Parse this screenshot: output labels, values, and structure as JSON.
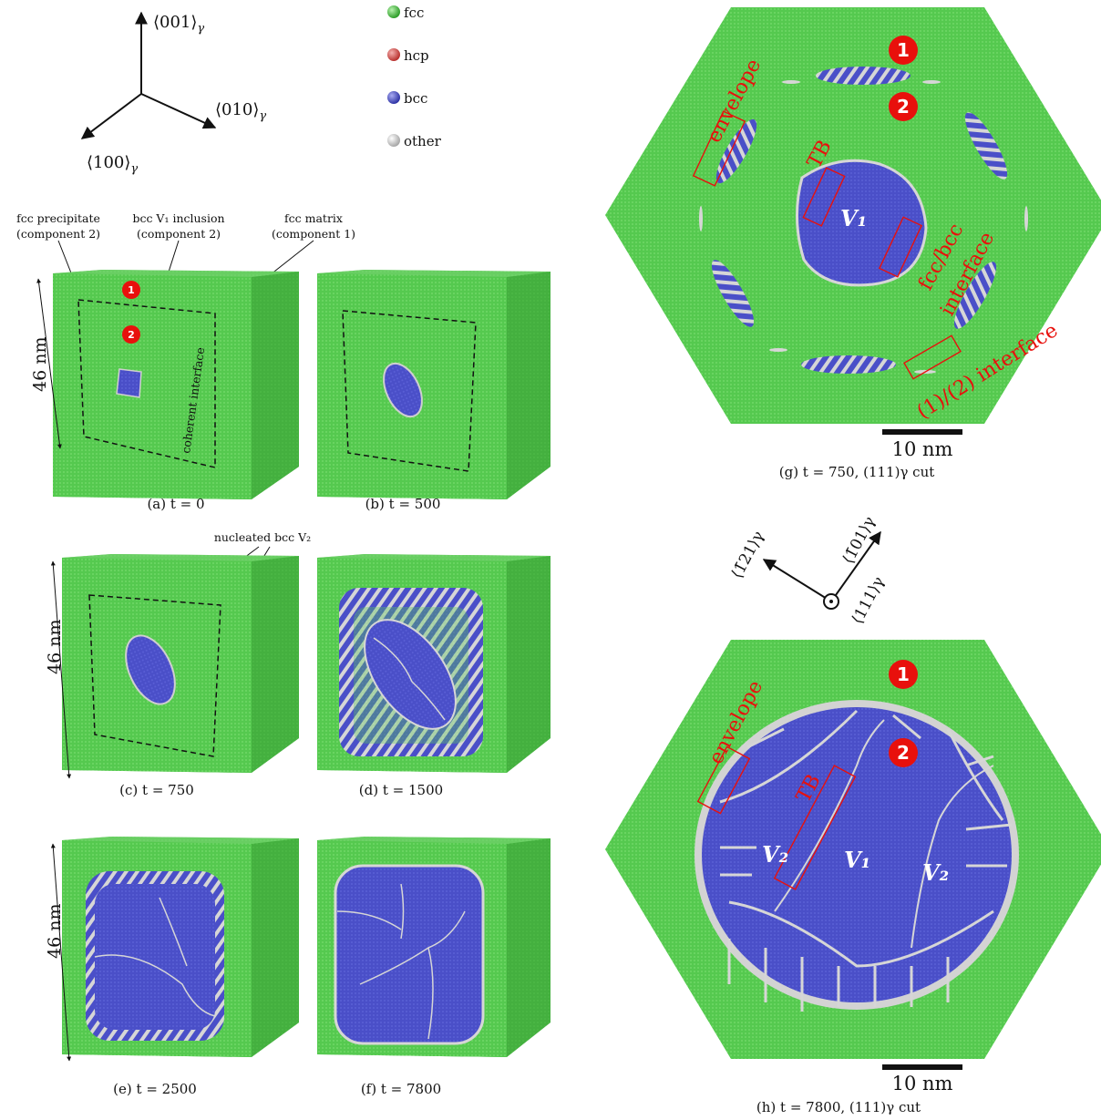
{
  "axes_3d": {
    "z_label": "⟨001⟩",
    "y_label": "⟨010⟩",
    "x_label": "⟨100⟩",
    "sub": "γ"
  },
  "legend": {
    "items": [
      {
        "label": "fcc",
        "color": "#4fc94a"
      },
      {
        "label": "hcp",
        "color": "#d9534f"
      },
      {
        "label": "bcc",
        "color": "#4a4fc8"
      },
      {
        "label": "other",
        "color": "#cfcfcf"
      }
    ]
  },
  "annotations_top": {
    "precipitate": [
      "fcc precipitate",
      "(component 2)"
    ],
    "inclusion": [
      "bcc V₁ inclusion",
      "(component 2)"
    ],
    "matrix": [
      "fcc matrix",
      "(component 1)"
    ],
    "coherent": "coherent interface",
    "nucleated": "nucleated bcc V₂",
    "size": "46 nm"
  },
  "markers": {
    "one": "1",
    "two": "2"
  },
  "panels": {
    "a": "(a)  t = 0",
    "b": "(b)  t = 500",
    "c": "(c)  t = 750",
    "d": "(d)  t = 1500",
    "e": "(e)  t = 2500",
    "f": "(f)  t = 7800",
    "g": "(g)  t = 750, (111)γ cut",
    "h": "(h)  t = 7800, (111)γ cut"
  },
  "hex_labels": {
    "envelope": "envelope",
    "tb": "TB",
    "fcc_bcc": "fcc/bcc",
    "interface": "interface",
    "comp_interface": "(1)/(2) interface",
    "v1": "V₁",
    "v2": "V₂",
    "scale": "10 nm"
  },
  "axes_111": {
    "a": "⟨1̄21⟩γ",
    "b": "⟨1̄01⟩γ",
    "c": "⟨111⟩γ"
  }
}
